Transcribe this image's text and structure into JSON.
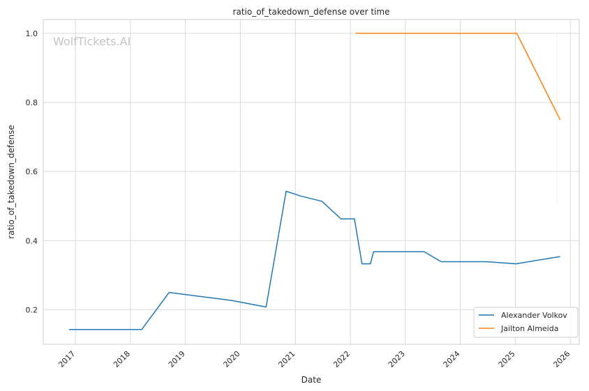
{
  "watermark": "WolfTickets.AI",
  "chart_data": {
    "type": "line",
    "title": "ratio_of_takedown_defense over time",
    "xlabel": "Date",
    "ylabel": "ratio_of_takedown_defense",
    "x_range": [
      "2016-06-01",
      "2026-03-01"
    ],
    "ylim": [
      0.1,
      1.04
    ],
    "x_ticks": [
      "2017",
      "2018",
      "2019",
      "2020",
      "2021",
      "2022",
      "2023",
      "2024",
      "2025",
      "2026"
    ],
    "y_ticks": [
      "0.2",
      "0.4",
      "0.6",
      "0.8",
      "1.0"
    ],
    "grid": true,
    "legend_position": "bottom-right",
    "series": [
      {
        "name": "Alexander Volkov",
        "color": "#1f77b4",
        "points": [
          [
            "2016-11-19",
            0.143
          ],
          [
            "2018-03-17",
            0.143
          ],
          [
            "2018-09-15",
            0.25
          ],
          [
            "2019-11-02",
            0.227
          ],
          [
            "2020-06-20",
            0.208
          ],
          [
            "2020-10-31",
            0.543
          ],
          [
            "2021-02-06",
            0.529
          ],
          [
            "2021-06-26",
            0.514
          ],
          [
            "2021-10-30",
            0.463
          ],
          [
            "2022-01-28",
            0.463
          ],
          [
            "2022-03-19",
            0.333
          ],
          [
            "2022-05-14",
            0.333
          ],
          [
            "2022-06-04",
            0.368
          ],
          [
            "2023-05-06",
            0.368
          ],
          [
            "2023-08-26",
            0.339
          ],
          [
            "2024-06-22",
            0.339
          ],
          [
            "2025-01-05",
            0.333
          ],
          [
            "2025-10-25",
            0.354
          ]
        ]
      },
      {
        "name": "Jailton Almeida",
        "color": "#ff7f0e",
        "points": [
          [
            "2022-02-05",
            1.0
          ],
          [
            "2025-01-10",
            1.0
          ],
          [
            "2025-10-25",
            0.75
          ]
        ]
      }
    ]
  }
}
